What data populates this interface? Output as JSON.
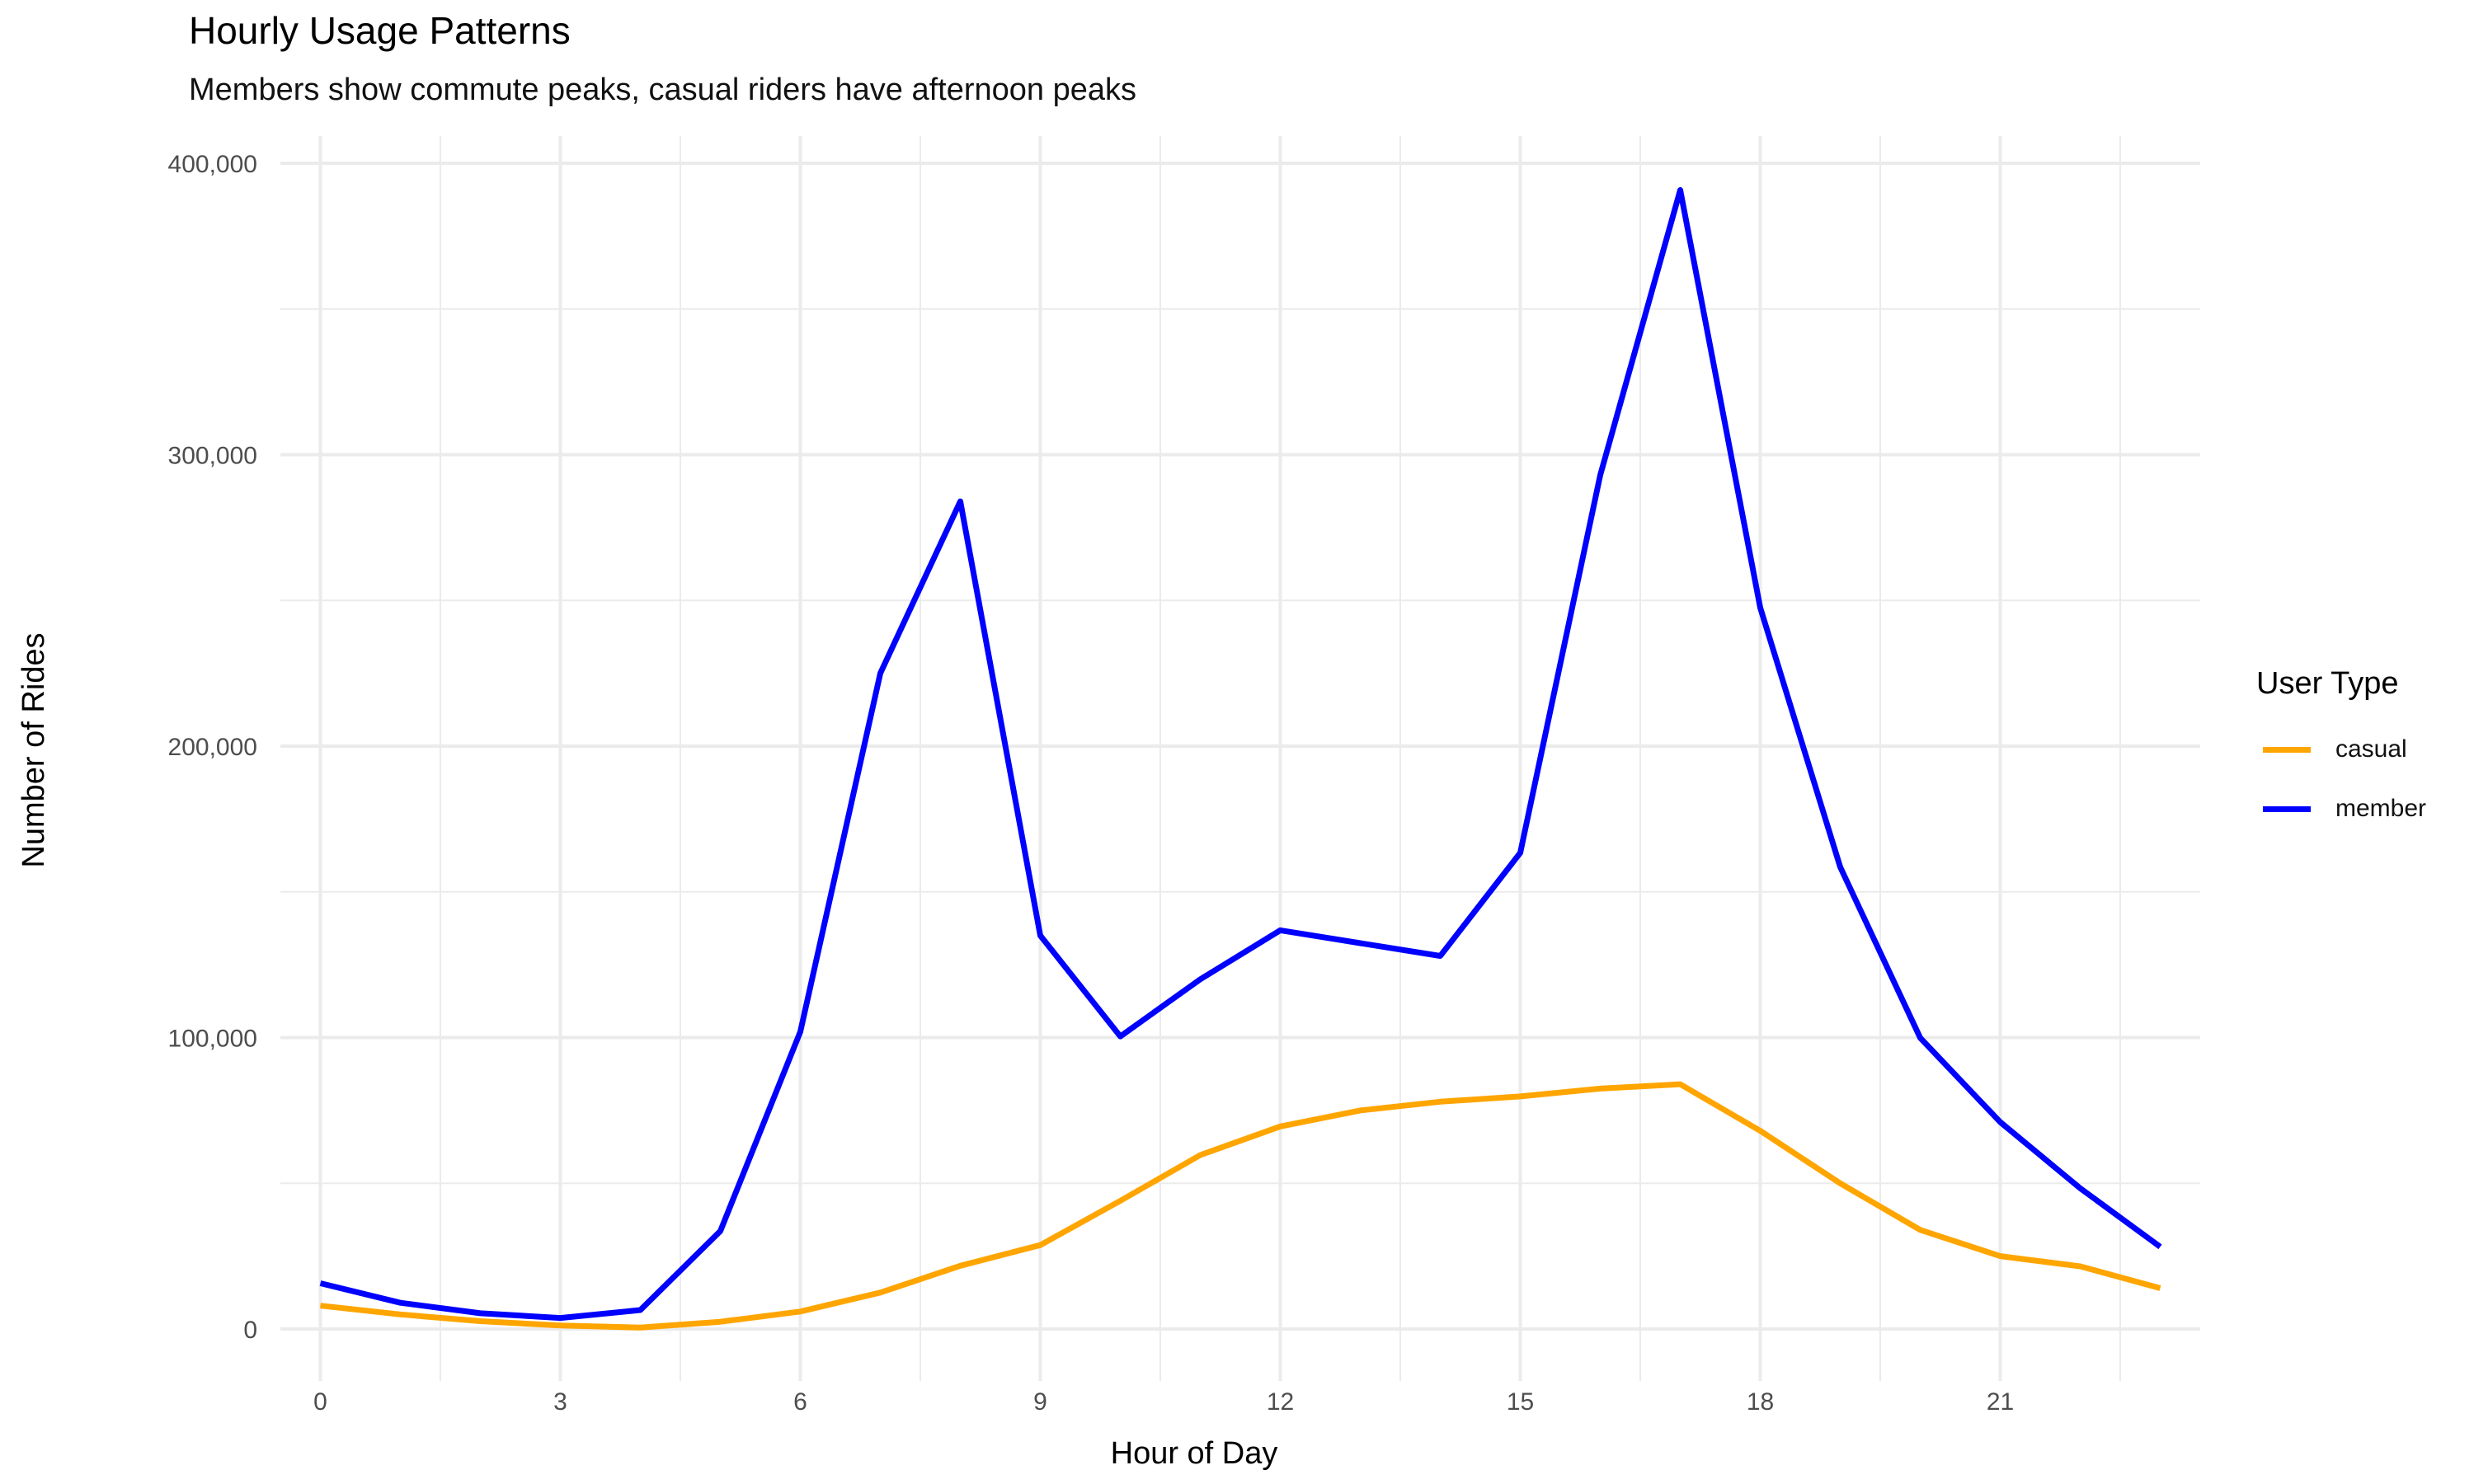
{
  "chart_data": {
    "type": "line",
    "title": "Hourly Usage Patterns",
    "subtitle": "Members show commute peaks, casual riders have afternoon peaks",
    "xlabel": "Hour of Day",
    "ylabel": "Number of Rides",
    "x": [
      0,
      1,
      2,
      3,
      4,
      5,
      6,
      7,
      8,
      9,
      10,
      11,
      12,
      13,
      14,
      15,
      16,
      17,
      18,
      19,
      20,
      21,
      22,
      23
    ],
    "xticks": [
      0,
      3,
      6,
      9,
      12,
      15,
      18,
      21
    ],
    "xtick_labels": [
      "0",
      "3",
      "6",
      "9",
      "12",
      "15",
      "18",
      "21"
    ],
    "yticks": [
      0,
      100000,
      200000,
      300000,
      400000
    ],
    "ytick_labels": [
      "0",
      "100,000",
      "200,000",
      "300,000",
      "400,000"
    ],
    "xlim": [
      -0.5,
      23.5
    ],
    "ylim": [
      -10000,
      410000
    ],
    "grid": true,
    "legend_position": "right",
    "legend_title": "User Type",
    "series": [
      {
        "name": "casual",
        "color": "#FFA500",
        "values": [
          8000,
          5000,
          2700,
          1200,
          500,
          2500,
          6000,
          12500,
          21700,
          28800,
          44000,
          59700,
          69500,
          75000,
          78000,
          79800,
          82500,
          84000,
          68000,
          50000,
          34000,
          25000,
          21500,
          14000
        ]
      },
      {
        "name": "member",
        "color": "#0000FF",
        "values": [
          15700,
          9000,
          5400,
          3800,
          6500,
          33600,
          102000,
          225000,
          284000,
          135000,
          100400,
          120000,
          136800,
          132400,
          128000,
          163400,
          293000,
          390800,
          247500,
          158500,
          99900,
          71000,
          48300,
          28200
        ]
      }
    ]
  }
}
